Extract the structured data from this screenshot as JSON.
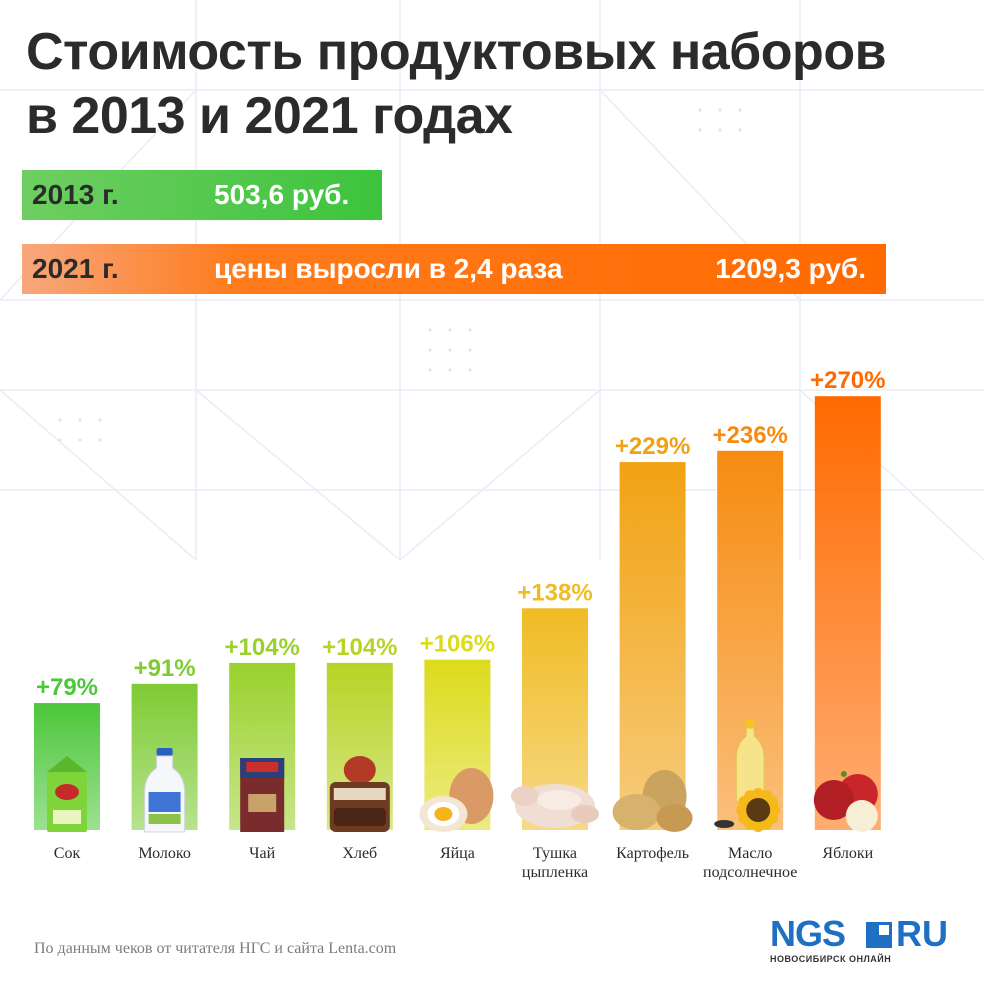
{
  "title": {
    "line1": "Стоимость продуктовых наборов",
    "line2": "в 2013 и 2021 годах"
  },
  "totals": {
    "year_2013": {
      "label": "2013 г.",
      "value": "503,6 руб.",
      "amount": 503.6,
      "color": "#3cc43c"
    },
    "year_2021": {
      "label": "2021 г.",
      "growth_text": "цены выросли в 2,4 раза",
      "value": "1209,3 руб.",
      "amount": 1209.3,
      "color": "#ff6a00"
    }
  },
  "chart_data": {
    "type": "bar",
    "categories": [
      "Сок",
      "Молоко",
      "Чай",
      "Хлеб",
      "Яйца",
      "Тушка цыпленка",
      "Картофель",
      "Масло подсолнечное",
      "Яблоки"
    ],
    "category_lines": [
      [
        "Сок"
      ],
      [
        "Молоко"
      ],
      [
        "Чай"
      ],
      [
        "Хлеб"
      ],
      [
        "Яйца"
      ],
      [
        "Тушка",
        "цыпленка"
      ],
      [
        "Картофель"
      ],
      [
        "Масло",
        "подсолнечное"
      ],
      [
        "Яблоки"
      ]
    ],
    "values": [
      79,
      91,
      104,
      104,
      106,
      138,
      229,
      236,
      270
    ],
    "value_labels": [
      "+79%",
      "+91%",
      "+104%",
      "+104%",
      "+106%",
      "+138%",
      "+229%",
      "+236%",
      "+270%"
    ],
    "colors": [
      "#4cc73a",
      "#7ecb34",
      "#9ad12c",
      "#b8d326",
      "#dcdb1c",
      "#f0bb24",
      "#f1a212",
      "#f68b10",
      "#ff6a00"
    ],
    "icons": [
      "juice-carton-icon",
      "milk-bottle-icon",
      "tea-box-icon",
      "bread-icon",
      "eggs-icon",
      "chicken-icon",
      "potato-icon",
      "sunflower-oil-icon",
      "apples-icon"
    ],
    "ylim": [
      0,
      300
    ],
    "grid": false,
    "legend": "none"
  },
  "source": "По данным чеков от читателя НГС и сайта Lenta.com",
  "logo": {
    "main": "NGS",
    "suffix": "RU",
    "subtitle": "НОВОСИБИРСК ОНЛАЙН",
    "color": "#1f6fc3"
  }
}
